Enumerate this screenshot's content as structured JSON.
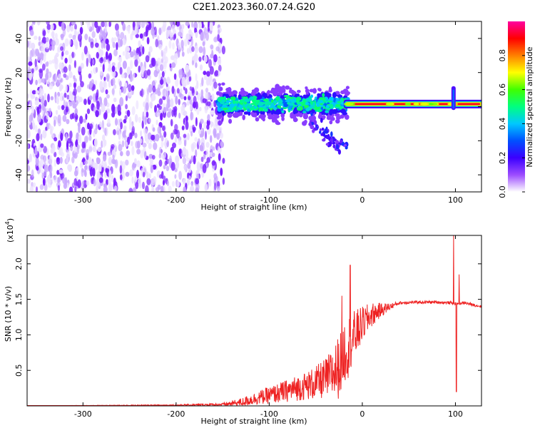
{
  "figure": {
    "title": "C2E1.2023.360.07.24.G20"
  },
  "colors": {
    "snr_line": "#ee2222",
    "noise_dot": "#7a1fff",
    "noise_dot_light": "#c9a8ff",
    "noise_dot_faint": "#ebe0ff"
  },
  "chart_data": [
    {
      "type": "heatmap",
      "title": "",
      "xlabel": "Height of straight line (km)",
      "ylabel": "Frequency (Hz)",
      "xlim": [
        -360,
        128
      ],
      "ylim": [
        -50,
        50
      ],
      "xticks": [
        -300,
        -200,
        -100,
        0,
        100
      ],
      "yticks": [
        -40,
        -20,
        0,
        20,
        40
      ],
      "grid": false,
      "colorbar": {
        "label": "Normalized spectral amplitude",
        "range": [
          0.0,
          1.0
        ],
        "ticks": [
          "0.0",
          "0.2",
          "0.4",
          "0.6",
          "0.8"
        ],
        "colormap": [
          "#ffffff",
          "#9c4cff",
          "#3b00ff",
          "#0050ff",
          "#00c8ff",
          "#00ff80",
          "#40ff00",
          "#ffff00",
          "#ff8000",
          "#ff0000",
          "#ff00a0"
        ]
      },
      "regions": [
        {
          "name": "noise",
          "x": [
            -360,
            -155
          ],
          "y": [
            -50,
            50
          ],
          "amplitude": 0.15
        },
        {
          "name": "blob",
          "x": [
            -155,
            -15
          ],
          "y_center": 1.5,
          "y_spread": 8,
          "amplitude": 0.5
        },
        {
          "name": "tail",
          "points": [
            [
              -60,
              -8
            ],
            [
              -45,
              -14
            ],
            [
              -35,
              -18
            ],
            [
              -25,
              -22
            ],
            [
              -20,
              -25
            ]
          ],
          "amplitude": 0.2
        },
        {
          "name": "carrier",
          "x": [
            -20,
            128
          ],
          "y": 1.5,
          "amplitude": 0.95
        },
        {
          "name": "spike",
          "x": 98,
          "y": [
            -2,
            12
          ],
          "amplitude": 0.4
        }
      ]
    },
    {
      "type": "line",
      "title": "",
      "xlabel": "Height of straight line (km)",
      "ylabel": "SNR (10 * v/v)",
      "y_multiplier": "(x10",
      "y_multiplier_exp": "4",
      "y_multiplier_close": ")",
      "xlim": [
        -360,
        128
      ],
      "ylim": [
        0,
        2.4
      ],
      "xticks": [
        -300,
        -200,
        -100,
        0,
        100
      ],
      "yticks": [
        "0.5",
        "1.0",
        "1.5",
        "2.0"
      ],
      "ytick_values": [
        0.5,
        1.0,
        1.5,
        2.0
      ],
      "grid": false,
      "series": [
        {
          "envelope": [
            [
              -360,
              0.0
            ],
            [
              -200,
              0.01
            ],
            [
              -150,
              0.02
            ],
            [
              -130,
              0.05
            ],
            [
              -110,
              0.12
            ],
            [
              -90,
              0.18
            ],
            [
              -70,
              0.25
            ],
            [
              -50,
              0.32
            ],
            [
              -35,
              0.42
            ],
            [
              -25,
              0.55
            ],
            [
              -20,
              0.75
            ],
            [
              -15,
              0.85
            ],
            [
              -10,
              0.95
            ],
            [
              -5,
              1.05
            ],
            [
              0,
              1.15
            ],
            [
              10,
              1.28
            ],
            [
              20,
              1.35
            ],
            [
              30,
              1.4
            ],
            [
              40,
              1.45
            ],
            [
              60,
              1.46
            ],
            [
              80,
              1.46
            ],
            [
              95,
              1.45
            ],
            [
              100,
              1.44
            ],
            [
              110,
              1.45
            ],
            [
              120,
              1.42
            ],
            [
              128,
              1.4
            ]
          ],
          "noise_amplitude": [
            [
              -360,
              0.0
            ],
            [
              -200,
              0.01
            ],
            [
              -150,
              0.02
            ],
            [
              -130,
              0.06
            ],
            [
              -100,
              0.12
            ],
            [
              -60,
              0.2
            ],
            [
              -40,
              0.28
            ],
            [
              -25,
              0.45
            ],
            [
              -15,
              0.45
            ],
            [
              0,
              0.25
            ],
            [
              20,
              0.1
            ],
            [
              30,
              0.05
            ],
            [
              40,
              0.02
            ],
            [
              128,
              0.02
            ]
          ],
          "spikes": [
            [
              -22,
              1.55
            ],
            [
              -13,
              1.98
            ],
            [
              98,
              2.4
            ],
            [
              101,
              0.2
            ],
            [
              104,
              1.85
            ]
          ]
        }
      ]
    }
  ]
}
